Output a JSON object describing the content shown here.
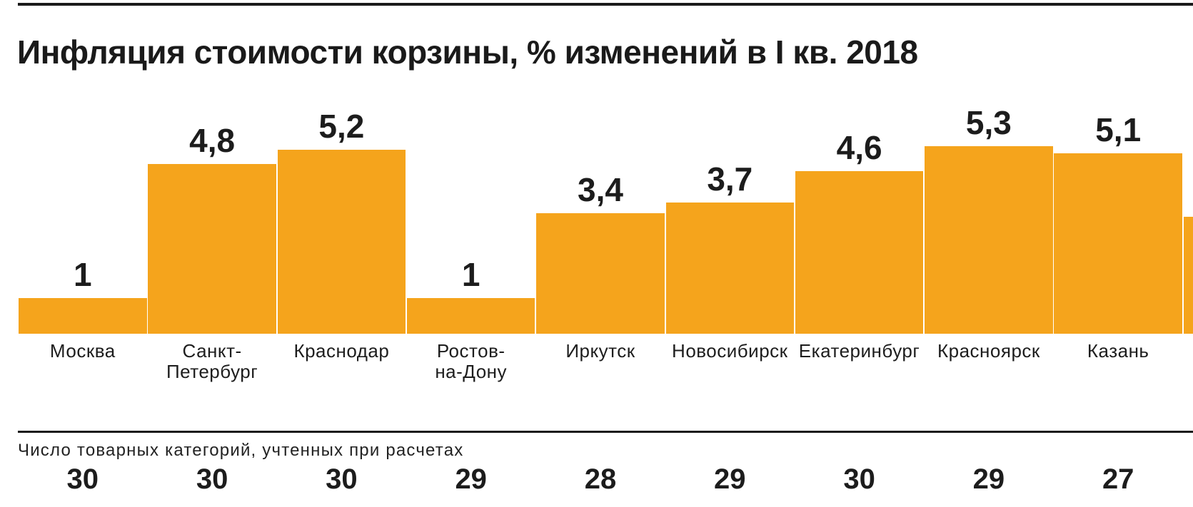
{
  "title": "Инфляция стоимости корзины, % изменений в I кв. 2018",
  "footer": {
    "note": "Число товарных категорий, учтенных при расчетах"
  },
  "colors": {
    "bar": "#F5A41C",
    "text": "#1C1C1C",
    "rule": "#1A1A1A",
    "background": "#FFFFFF"
  },
  "chart_data": {
    "type": "bar",
    "title": "Инфляция стоимости корзины, % изменений в I кв. 2018",
    "categories": [
      "Москва",
      "Санкт-\nПетербург",
      "Краснодар",
      "Ростов-\nна-Дону",
      "Иркутск",
      "Новосибирск",
      "Екатеринбург",
      "Красноярск",
      "Казань"
    ],
    "values": [
      1,
      4.8,
      5.2,
      1,
      3.4,
      3.7,
      4.6,
      5.3,
      5.1
    ],
    "value_labels": [
      "1",
      "4,8",
      "5,2",
      "1",
      "3,4",
      "3,7",
      "4,6",
      "5,3",
      "5,1"
    ],
    "counts_caption": "Число товарных категорий, учтенных при расчетах",
    "category_counts": [
      30,
      30,
      30,
      29,
      28,
      29,
      30,
      29,
      27
    ],
    "partial_bar_value": 3.3,
    "ylim": [
      0,
      5.5
    ],
    "xlabel": "",
    "ylabel": "",
    "grid": false,
    "legend": "none",
    "bar_color": "#F5A41C"
  }
}
